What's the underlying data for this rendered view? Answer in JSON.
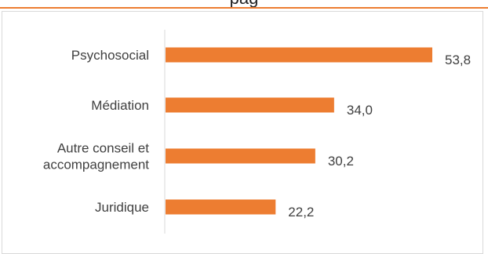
{
  "header": {
    "title_fragment": "pag"
  },
  "colors": {
    "bar": "#ED7D31",
    "axis": "#d9d9d9",
    "text": "#404040",
    "accent_rule": "#ED7D31"
  },
  "chart_data": {
    "type": "bar",
    "orientation": "horizontal",
    "categories": [
      [
        "Psychosocial"
      ],
      [
        "Médiation"
      ],
      [
        "Autre conseil et",
        "accompagnement"
      ],
      [
        "Juridique"
      ]
    ],
    "values": [
      53.8,
      34.0,
      30.2,
      22.2
    ],
    "value_labels": [
      "53,8",
      "34,0",
      "30,2",
      "22,2"
    ],
    "xlim": [
      0,
      55
    ],
    "grid": false,
    "legend": "none"
  }
}
